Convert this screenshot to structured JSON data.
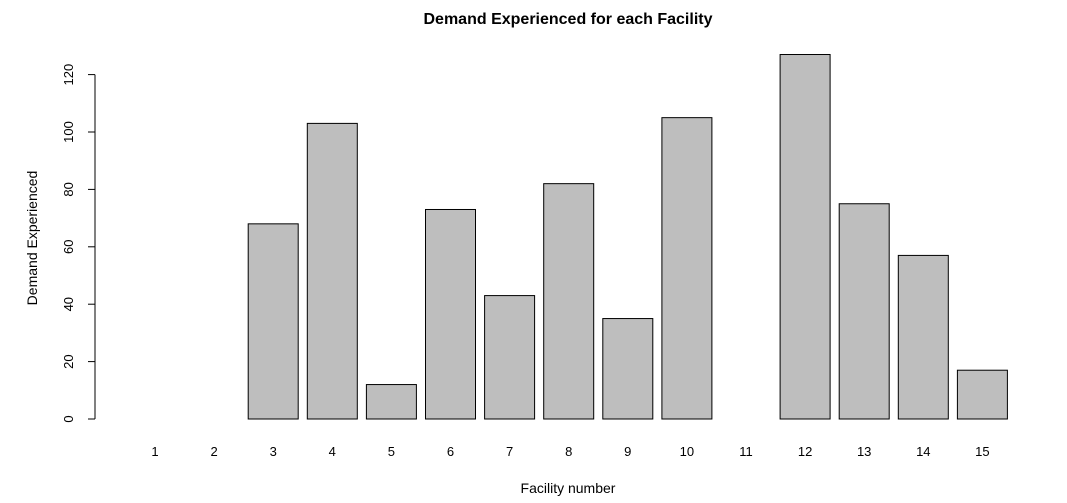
{
  "chart_data": {
    "type": "bar",
    "title": "Demand Experienced for each Facility",
    "xlabel": "Facility number",
    "ylabel": "Demand Experienced",
    "categories": [
      "1",
      "2",
      "3",
      "4",
      "5",
      "6",
      "7",
      "8",
      "9",
      "10",
      "11",
      "12",
      "13",
      "14",
      "15"
    ],
    "values": [
      0,
      0,
      68,
      103,
      12,
      73,
      43,
      82,
      35,
      105,
      0,
      127,
      75,
      57,
      17
    ],
    "ylim": [
      0,
      120
    ],
    "yticks": [
      "0",
      "20",
      "40",
      "60",
      "80",
      "100",
      "120"
    ],
    "grid": false,
    "colors": {
      "bar_fill": "#bebebe",
      "bar_stroke": "#000000"
    }
  }
}
